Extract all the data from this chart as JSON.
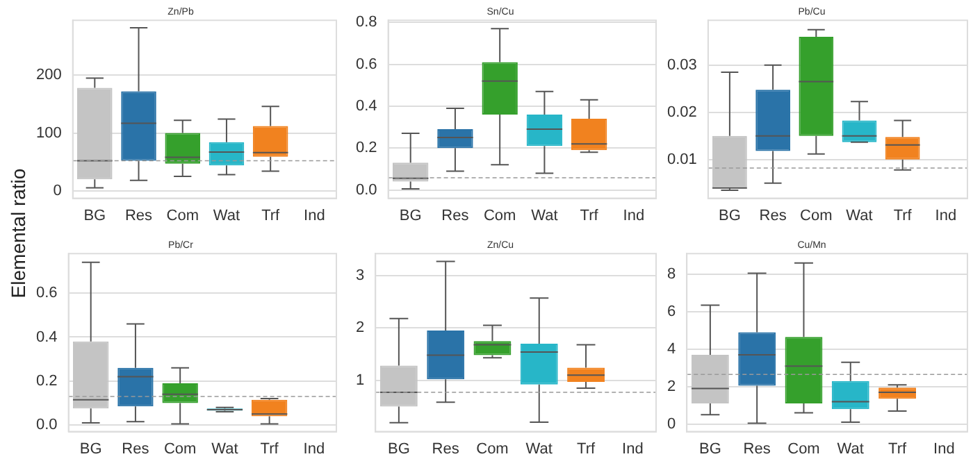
{
  "chart_data": [
    {
      "type": "box",
      "title": "Zn/Pb",
      "ylabel": "Elemental ratio",
      "categories": [
        "BG",
        "Res",
        "Com",
        "Wat",
        "Trf",
        "Ind"
      ],
      "colors": [
        "#c4c4c4",
        "#2a73a8",
        "#35a02c",
        "#27b6c8",
        "#f1821f",
        "#c4c4c4"
      ],
      "ylim": [
        -13,
        295
      ],
      "yticks": [
        0,
        100,
        200
      ],
      "grid": "y",
      "ref_lines": [
        {
          "axis": "y",
          "value": 52,
          "color": "#999999",
          "line_style": "dashed"
        }
      ],
      "boxes": [
        {
          "low": 5,
          "q1": 20,
          "median": 52,
          "q3": 178,
          "high": 195
        },
        {
          "low": 18,
          "q1": 52,
          "median": 117,
          "q3": 172,
          "high": 282
        },
        {
          "low": 25,
          "q1": 47,
          "median": 58,
          "q3": 100,
          "high": 122
        },
        {
          "low": 28,
          "q1": 44,
          "median": 67,
          "q3": 84,
          "high": 124
        },
        {
          "low": 34,
          "q1": 59,
          "median": 66,
          "q3": 112,
          "high": 146
        },
        null
      ]
    },
    {
      "type": "box",
      "title": "Sn/Cu",
      "categories": [
        "BG",
        "Res",
        "Com",
        "Wat",
        "Trf",
        "Ind"
      ],
      "colors": [
        "#c4c4c4",
        "#2a73a8",
        "#35a02c",
        "#27b6c8",
        "#f1821f",
        "#c4c4c4"
      ],
      "ylim": [
        -0.04,
        0.81
      ],
      "yticks": [
        {
          "value": 0,
          "label": "0.0"
        },
        0.2,
        0.4,
        0.6,
        0.8
      ],
      "grid": "y",
      "ref_lines": [
        {
          "axis": "y",
          "value": 0.058,
          "color": "#999999",
          "line_style": "dashed"
        }
      ],
      "boxes": [
        {
          "low": 0.005,
          "q1": 0.04,
          "median": 0.056,
          "q3": 0.13,
          "high": 0.27
        },
        {
          "low": 0.09,
          "q1": 0.2,
          "median": 0.25,
          "q3": 0.29,
          "high": 0.39
        },
        {
          "low": 0.12,
          "q1": 0.36,
          "median": 0.52,
          "q3": 0.61,
          "high": 0.77
        },
        {
          "low": 0.08,
          "q1": 0.21,
          "median": 0.29,
          "q3": 0.36,
          "high": 0.47
        },
        {
          "low": 0.18,
          "q1": 0.19,
          "median": 0.22,
          "q3": 0.34,
          "high": 0.43
        },
        null
      ]
    },
    {
      "type": "box",
      "title": "Pb/Cu",
      "categories": [
        "BG",
        "Res",
        "Com",
        "Wat",
        "Trf",
        "Ind"
      ],
      "colors": [
        "#c4c4c4",
        "#2a73a8",
        "#35a02c",
        "#27b6c8",
        "#f1821f",
        "#c4c4c4"
      ],
      "ylim": [
        0.0018,
        0.0395
      ],
      "yticks": [
        0.01,
        0.02,
        0.03
      ],
      "grid": "y",
      "ref_lines": [
        {
          "axis": "y",
          "value": 0.0082,
          "color": "#999999",
          "line_style": "dashed"
        }
      ],
      "boxes": [
        {
          "low": 0.0035,
          "q1": 0.004,
          "median": 0.004,
          "q3": 0.015,
          "high": 0.0285
        },
        {
          "low": 0.005,
          "q1": 0.0118,
          "median": 0.015,
          "q3": 0.0248,
          "high": 0.03
        },
        {
          "low": 0.0112,
          "q1": 0.015,
          "median": 0.0265,
          "q3": 0.036,
          "high": 0.0375
        },
        {
          "low": 0.0137,
          "q1": 0.0137,
          "median": 0.015,
          "q3": 0.0183,
          "high": 0.0223
        },
        {
          "low": 0.0078,
          "q1": 0.01,
          "median": 0.0131,
          "q3": 0.0148,
          "high": 0.0183
        },
        null
      ]
    },
    {
      "type": "box",
      "title": "Pb/Cr",
      "categories": [
        "BG",
        "Res",
        "Com",
        "Wat",
        "Trf",
        "Ind"
      ],
      "colors": [
        "#c4c4c4",
        "#2a73a8",
        "#35a02c",
        "#27b6c8",
        "#f1821f",
        "#c4c4c4"
      ],
      "ylim": [
        -0.03,
        0.78
      ],
      "yticks": [
        {
          "value": 0,
          "label": "0.0"
        },
        0.2,
        0.4,
        0.6
      ],
      "grid": "y",
      "ref_lines": [
        {
          "axis": "y",
          "value": 0.13,
          "color": "#999999",
          "line_style": "dashed"
        }
      ],
      "boxes": [
        {
          "low": 0.01,
          "q1": 0.075,
          "median": 0.115,
          "q3": 0.38,
          "high": 0.74
        },
        {
          "low": 0.015,
          "q1": 0.085,
          "median": 0.22,
          "q3": 0.26,
          "high": 0.46
        },
        {
          "low": 0.005,
          "q1": 0.1,
          "median": 0.14,
          "q3": 0.19,
          "high": 0.26
        },
        {
          "low": 0.06,
          "q1": 0.065,
          "median": 0.07,
          "q3": 0.075,
          "high": 0.08
        },
        {
          "low": 0.005,
          "q1": 0.04,
          "median": 0.05,
          "q3": 0.115,
          "high": 0.12
        },
        null
      ]
    },
    {
      "type": "box",
      "title": "Zn/Cu",
      "categories": [
        "BG",
        "Res",
        "Com",
        "Wat",
        "Trf",
        "Ind"
      ],
      "colors": [
        "#c4c4c4",
        "#2a73a8",
        "#35a02c",
        "#27b6c8",
        "#f1821f",
        "#c4c4c4"
      ],
      "ylim": [
        0.02,
        3.42
      ],
      "yticks": [
        1,
        2,
        3
      ],
      "grid": "y",
      "ref_lines": [
        {
          "axis": "y",
          "value": 0.77,
          "color": "#999999",
          "line_style": "dashed"
        }
      ],
      "boxes": [
        {
          "low": 0.19,
          "q1": 0.5,
          "median": 0.77,
          "q3": 1.28,
          "high": 2.18
        },
        {
          "low": 0.58,
          "q1": 1.02,
          "median": 1.48,
          "q3": 1.95,
          "high": 3.27
        },
        {
          "low": 1.43,
          "q1": 1.48,
          "median": 1.68,
          "q3": 1.75,
          "high": 2.05
        },
        {
          "low": 0.2,
          "q1": 0.92,
          "median": 1.54,
          "q3": 1.7,
          "high": 2.57
        },
        {
          "low": 0.85,
          "q1": 0.97,
          "median": 1.1,
          "q3": 1.24,
          "high": 1.68
        },
        null
      ]
    },
    {
      "type": "box",
      "title": "Cu/Mn",
      "categories": [
        "BG",
        "Res",
        "Com",
        "Wat",
        "Trf",
        "Ind"
      ],
      "colors": [
        "#c4c4c4",
        "#2a73a8",
        "#35a02c",
        "#27b6c8",
        "#f1821f",
        "#c4c4c4"
      ],
      "ylim": [
        -0.4,
        9.1
      ],
      "yticks": [
        0,
        2,
        4,
        6,
        8
      ],
      "grid": "y",
      "ref_lines": [
        {
          "axis": "y",
          "value": 2.65,
          "color": "#999999",
          "line_style": "dashed"
        }
      ],
      "boxes": [
        {
          "low": 0.5,
          "q1": 1.1,
          "median": 1.9,
          "q3": 3.7,
          "high": 6.35
        },
        {
          "low": 0.05,
          "q1": 2.05,
          "median": 3.7,
          "q3": 4.9,
          "high": 8.05
        },
        {
          "low": 0.6,
          "q1": 1.1,
          "median": 3.1,
          "q3": 4.65,
          "high": 8.6
        },
        {
          "low": 0.1,
          "q1": 0.8,
          "median": 1.2,
          "q3": 2.3,
          "high": 3.3
        },
        {
          "low": 0.7,
          "q1": 1.35,
          "median": 1.7,
          "q3": 1.95,
          "high": 2.1
        },
        null
      ]
    }
  ]
}
